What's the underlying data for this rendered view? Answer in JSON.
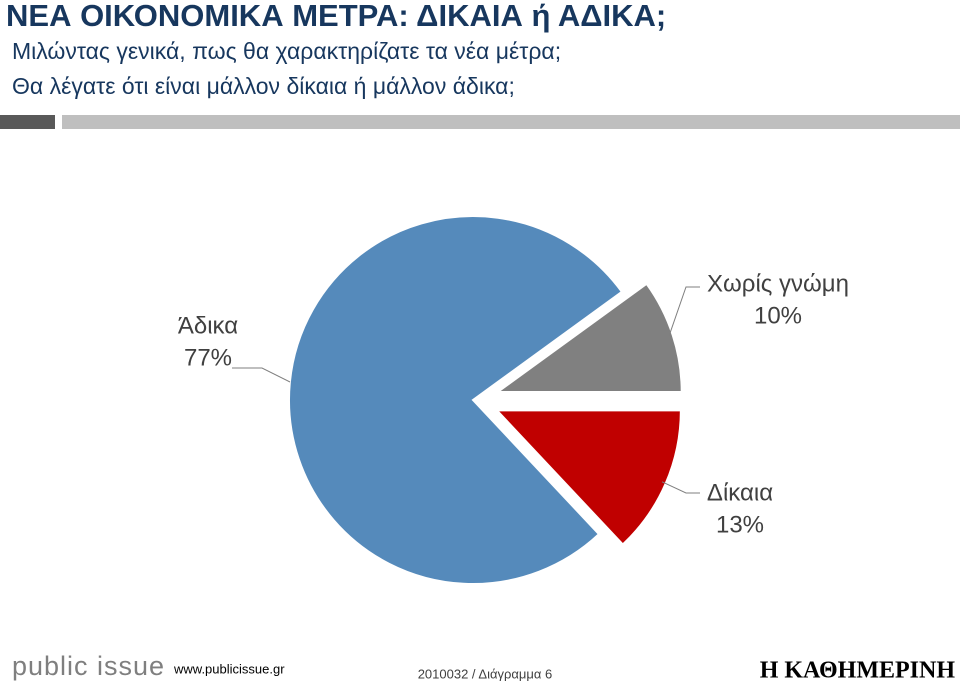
{
  "chart_data": {
    "type": "pie",
    "title": "ΝΕΑ ΟΙΚΟΝΟΜΙΚΑ ΜΕΤΡΑ: ΔΙΚΑΙΑ ή ΑΔΙΚΑ;",
    "subtitle": [
      "Μιλώντας γενικά, πως θα χαρακτηρίζατε τα νέα μέτρα;",
      "Θα λέγατε ότι είναι μάλλον δίκαια ή μάλλον άδικα;"
    ],
    "categories": [
      "Δίκαια",
      "Άδικα",
      "Χωρίς γνώμη"
    ],
    "values": [
      13,
      77,
      10
    ],
    "value_labels": [
      "13%",
      "77%",
      "10%"
    ],
    "colors": [
      "#c00000",
      "#558abb",
      "#808080"
    ]
  },
  "footer": {
    "logo": "public issue",
    "url": "www.publicissue.gr",
    "code": "2010032 / Διάγραμμα 6",
    "partner": "Η ΚΑΘΗΜΕΡΙΝΗ"
  }
}
